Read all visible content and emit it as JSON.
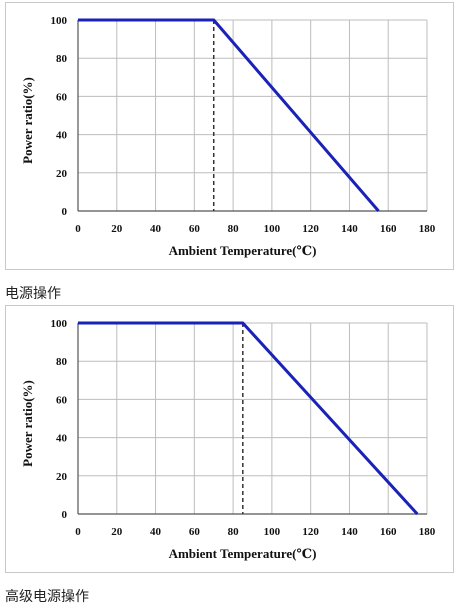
{
  "figures": [
    {
      "caption": "电源操作"
    },
    {
      "caption": "高级电源操作"
    }
  ],
  "colors": {
    "curve": "#1a22b8",
    "grid": "#bdbdbd",
    "axis": "#555555"
  },
  "chart_data": [
    {
      "type": "line",
      "xlabel": "Ambient Temperature(℃)",
      "ylabel": "Power ratio(%)",
      "xlim": [
        0,
        180
      ],
      "ylim": [
        0,
        100
      ],
      "xticks": [
        0,
        20,
        40,
        60,
        80,
        100,
        120,
        140,
        160,
        180
      ],
      "yticks": [
        0,
        20,
        40,
        60,
        80,
        100
      ],
      "grid": true,
      "series": [
        {
          "x": [
            0,
            70,
            155
          ],
          "y": [
            100,
            100,
            0
          ]
        }
      ],
      "marker_line": {
        "x": 70,
        "style": "dashed"
      }
    },
    {
      "type": "line",
      "xlabel": "Ambient Temperature(℃)",
      "ylabel": "Power ratio(%)",
      "xlim": [
        0,
        180
      ],
      "ylim": [
        0,
        100
      ],
      "xticks": [
        0,
        20,
        40,
        60,
        80,
        100,
        120,
        140,
        160,
        180
      ],
      "yticks": [
        0,
        20,
        40,
        60,
        80,
        100
      ],
      "grid": true,
      "series": [
        {
          "x": [
            0,
            85,
            175
          ],
          "y": [
            100,
            100,
            0
          ]
        }
      ],
      "marker_line": {
        "x": 85,
        "style": "dashed"
      }
    }
  ]
}
